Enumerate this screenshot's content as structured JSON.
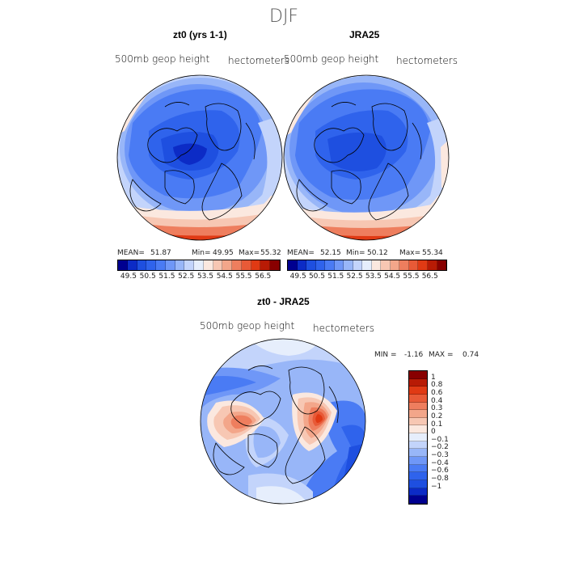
{
  "figure": {
    "title": "DJF"
  },
  "colors": {
    "scale": [
      "#000090",
      "#0c2bc6",
      "#1e4fe0",
      "#2f63ec",
      "#4a7bf4",
      "#6f97f7",
      "#98b6f8",
      "#c3d4fb",
      "#e6eefc",
      "#fbe8df",
      "#f7c7b3",
      "#f3a68a",
      "#ee7e5e",
      "#e85a37",
      "#e03a14",
      "#b81b05",
      "#880000"
    ],
    "land_stroke": "#000000"
  },
  "panels": [
    {
      "title": "zt0 (yrs 1-1)",
      "variable_label": "500mb geop height",
      "units_label": "hectometers",
      "stats": {
        "mean_label": "MEAN=",
        "mean": "51.87",
        "min_label": "Min=",
        "min": "49.95",
        "max_label": "Max=",
        "max": "55.32"
      },
      "colorbar_ticks": [
        "49.5",
        "50.5",
        "51.5",
        "52.5",
        "53.5",
        "54.5",
        "55.5",
        "56.5"
      ]
    },
    {
      "title": "JRA25",
      "variable_label": "500mb geop height",
      "units_label": "hectometers",
      "stats": {
        "mean_label": "MEAN=",
        "mean": "52.15",
        "min_label": "Min=",
        "min": "50.12",
        "max_label": "Max=",
        "max": "55.34"
      },
      "colorbar_ticks": [
        "49.5",
        "50.5",
        "51.5",
        "52.5",
        "53.5",
        "54.5",
        "55.5",
        "56.5"
      ]
    }
  ],
  "difference_panel": {
    "title": "zt0 - JRA25",
    "variable_label": "500mb geop height",
    "units_label": "hectometers",
    "stats": {
      "min_label": "MIN =",
      "min": "-1.16",
      "max_label": "MAX =",
      "max": "0.74"
    },
    "colorbar_ticks": [
      "1",
      "0.8",
      "0.6",
      "0.4",
      "0.3",
      "0.2",
      "0.1",
      "0",
      "−0.1",
      "−0.2",
      "−0.3",
      "−0.4",
      "−0.6",
      "−0.8",
      "−1"
    ]
  }
}
